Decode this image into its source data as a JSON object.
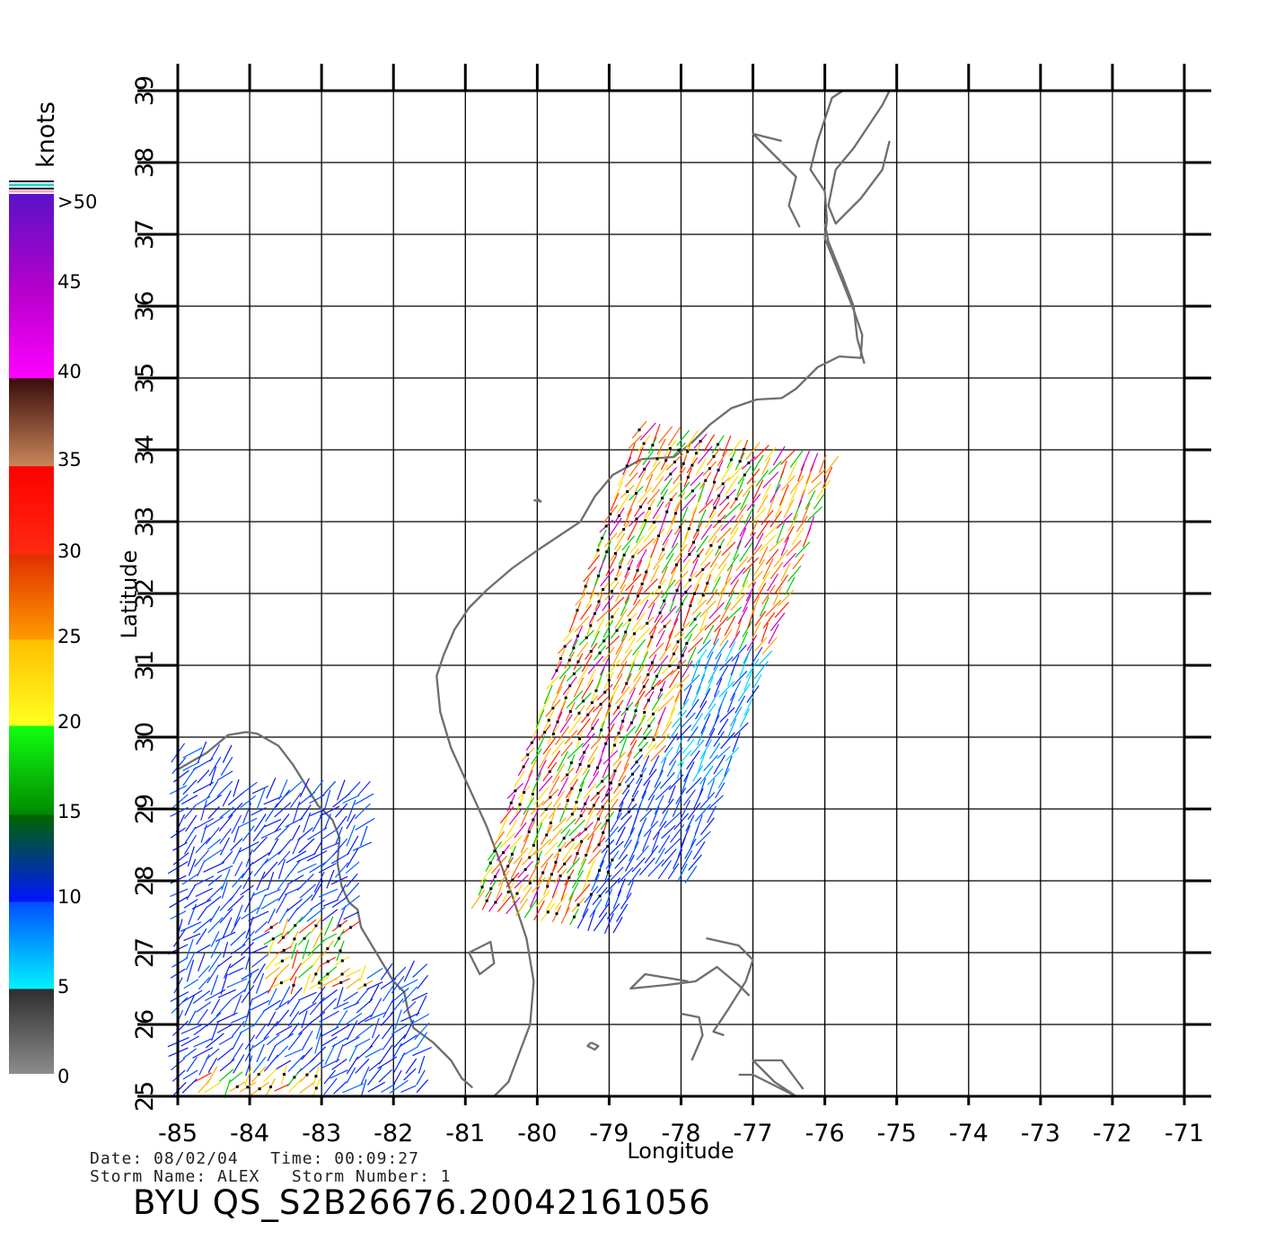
{
  "map": {
    "xlabel": "Longitude",
    "ylabel": "Latitude",
    "lon_ticks": [
      "-85",
      "-84",
      "-83",
      "-82",
      "-81",
      "-80",
      "-79",
      "-78",
      "-77",
      "-76",
      "-75",
      "-74",
      "-73",
      "-72",
      "-71"
    ],
    "lat_ticks": [
      "25",
      "26",
      "27",
      "28",
      "29",
      "30",
      "31",
      "32",
      "33",
      "34",
      "35",
      "36",
      "37",
      "38",
      "39"
    ],
    "lon_range": [
      -85,
      -71
    ],
    "lat_range": [
      25,
      39
    ],
    "grid": true,
    "coast_color": "#6e6e6e"
  },
  "legend": {
    "unit": "knots",
    "labels": [
      "0",
      "5",
      "10",
      "15",
      "20",
      "25",
      "30",
      "35",
      "40",
      "45",
      ">50"
    ]
  },
  "footer": {
    "date_line": "Date: 08/02/04   Time: 00:09:27",
    "storm_line": "Storm Name: ALEX   Storm Number: 1",
    "product": "BYU QS_S2B26676.20042161056"
  }
}
